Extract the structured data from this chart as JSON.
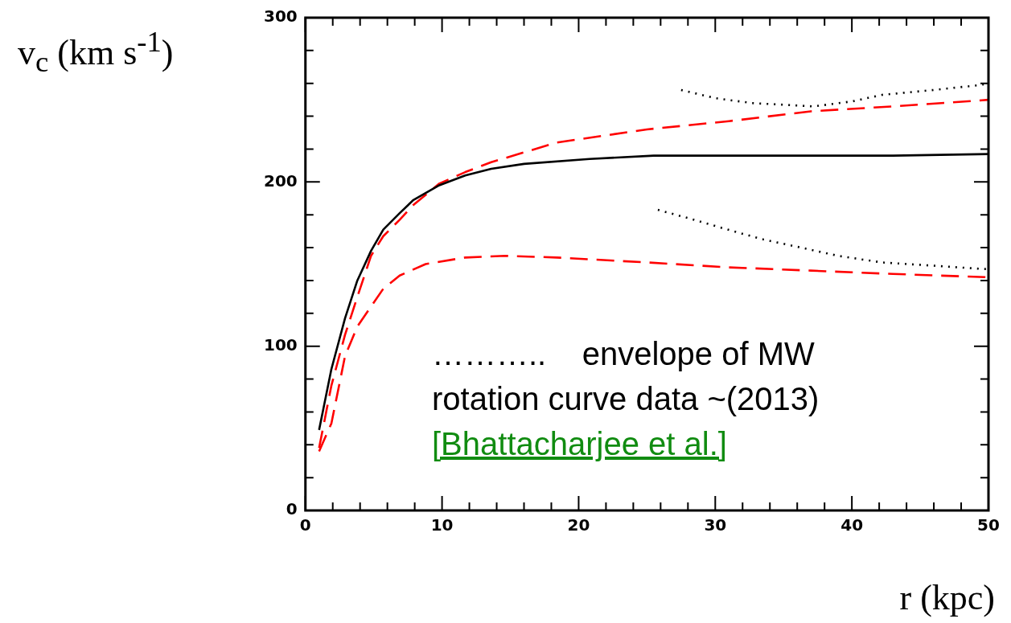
{
  "chart_data": {
    "type": "line",
    "xlabel": "r (kpc)",
    "ylabel": "v$_{c}$ (km s$^{-1}$)",
    "xlim": [
      0,
      50
    ],
    "ylim": [
      0,
      300
    ],
    "xticks": [
      0,
      {
        "value": 2,
        "label": null
      },
      {
        "value": 4,
        "label": null
      },
      {
        "value": 6,
        "label": null
      },
      {
        "value": 8,
        "label": null
      },
      10,
      {
        "value": 12,
        "label": null
      },
      {
        "value": 14,
        "label": null
      },
      {
        "value": 16,
        "label": null
      },
      {
        "value": 18,
        "label": null
      },
      20,
      {
        "value": 22,
        "label": null
      },
      {
        "value": 24,
        "label": null
      },
      {
        "value": 26,
        "label": null
      },
      {
        "value": 28,
        "label": null
      },
      30,
      {
        "value": 32,
        "label": null
      },
      {
        "value": 34,
        "label": null
      },
      {
        "value": 36,
        "label": null
      },
      {
        "value": 38,
        "label": null
      },
      40,
      {
        "value": 42,
        "label": null
      },
      {
        "value": 44,
        "label": null
      },
      {
        "value": 46,
        "label": null
      },
      {
        "value": 48,
        "label": null
      },
      50
    ],
    "yticks": [
      0,
      {
        "value": 20,
        "label": null
      },
      {
        "value": 40,
        "label": null
      },
      {
        "value": 60,
        "label": null
      },
      {
        "value": 80,
        "label": null
      },
      100,
      {
        "value": 120,
        "label": null
      },
      {
        "value": 140,
        "label": null
      },
      {
        "value": 160,
        "label": null
      },
      {
        "value": 180,
        "label": null
      },
      200,
      {
        "value": 220,
        "label": null
      },
      {
        "value": 240,
        "label": null
      },
      {
        "value": 260,
        "label": null
      },
      {
        "value": 280,
        "label": null
      },
      300
    ],
    "grid": false,
    "legend": false,
    "marker": "none",
    "series": [
      {
        "color": "#000000",
        "line_style": "solid",
        "x": [
          1,
          1.9,
          2.9,
          3.8,
          4.8,
          5.7,
          6.9,
          7.9,
          9.8,
          11.7,
          13.6,
          16,
          20.8,
          25.5,
          31,
          37,
          43,
          50
        ],
        "values": [
          49,
          86,
          117,
          140,
          158,
          171,
          181,
          189,
          198,
          204,
          208,
          211,
          214,
          216,
          216,
          216,
          216,
          217
        ]
      },
      {
        "color": "#ff0000",
        "line_style": "dashed",
        "x": [
          1,
          1.9,
          2.9,
          3.8,
          4.8,
          5.7,
          6.9,
          7.9,
          9.8,
          11.7,
          13.6,
          18.4,
          25,
          31,
          37,
          43,
          50
        ],
        "values": [
          38,
          76,
          107,
          130,
          155,
          167,
          177,
          186,
          199,
          206,
          212,
          224,
          232,
          237,
          243,
          246,
          250
        ]
      },
      {
        "color": "#ff0000",
        "line_style": "dashed",
        "x": [
          1,
          1.9,
          2.9,
          3.8,
          5.7,
          6.9,
          8.8,
          11.7,
          14.6,
          18.4,
          25,
          31,
          37,
          43,
          50
        ],
        "values": [
          36,
          53,
          94,
          112,
          135,
          143,
          150,
          154,
          155,
          154,
          151,
          148,
          146,
          144,
          142
        ]
      },
      {
        "color": "#000000",
        "line_style": "dotted",
        "x": [
          27.5,
          30,
          32.7,
          35,
          37.2,
          40,
          42.2,
          46,
          49.4,
          50
        ],
        "values": [
          256,
          251,
          248,
          247,
          246,
          249,
          253,
          256,
          259,
          260
        ]
      },
      {
        "color": "#000000",
        "line_style": "dotted",
        "x": [
          25.8,
          28,
          30.9,
          33.5,
          36.3,
          39,
          42.2,
          46,
          49.6,
          50
        ],
        "values": [
          183,
          178,
          171,
          165,
          160,
          155,
          151,
          149,
          147,
          147
        ]
      }
    ],
    "annotations": [
      "………..    envelope of MW",
      "rotation curve data ~(2013)",
      "[Bhattacharjee et al.]"
    ]
  }
}
